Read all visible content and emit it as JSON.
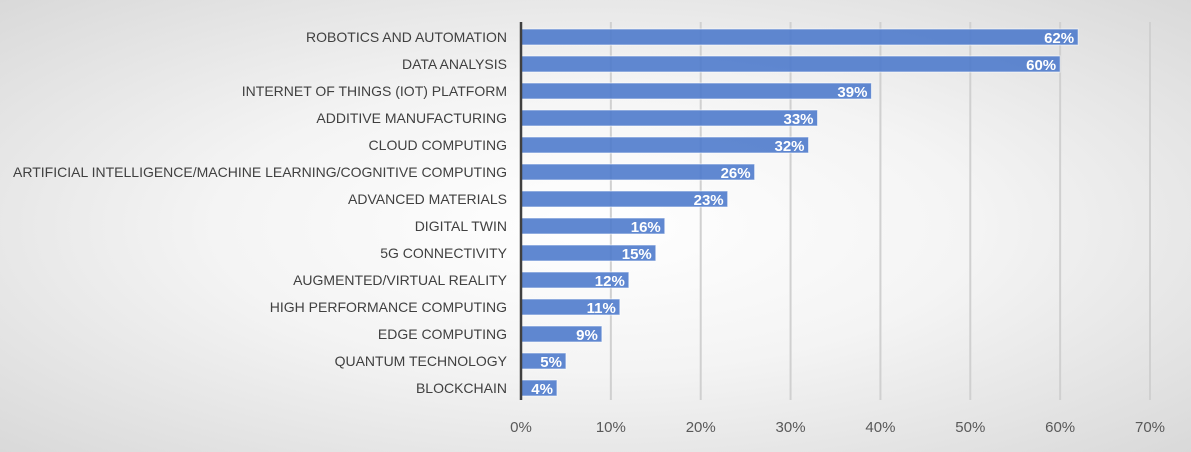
{
  "chart_data": {
    "type": "bar",
    "orientation": "horizontal",
    "categories": [
      "ROBOTICS AND AUTOMATION",
      "DATA ANALYSIS",
      "INTERNET OF THINGS (IOT) PLATFORM",
      "ADDITIVE MANUFACTURING",
      "CLOUD COMPUTING",
      "ARTIFICIAL INTELLIGENCE/MACHINE LEARNING/COGNITIVE COMPUTING",
      "ADVANCED MATERIALS",
      "DIGITAL TWIN",
      "5G CONNECTIVITY",
      "AUGMENTED/VIRTUAL REALITY",
      "HIGH PERFORMANCE COMPUTING",
      "EDGE COMPUTING",
      "QUANTUM TECHNOLOGY",
      "BLOCKCHAIN"
    ],
    "values": [
      62,
      60,
      39,
      33,
      32,
      26,
      23,
      16,
      15,
      12,
      11,
      9,
      5,
      4
    ],
    "data_labels": [
      "62%",
      "60%",
      "39%",
      "33%",
      "32%",
      "26%",
      "23%",
      "16%",
      "15%",
      "12%",
      "11%",
      "9%",
      "5%",
      "4%"
    ],
    "xlim": [
      0,
      70
    ],
    "x_ticks": [
      "0%",
      "10%",
      "20%",
      "30%",
      "40%",
      "50%",
      "60%",
      "70%"
    ],
    "grid": "vertical",
    "bar_color": "#4a78cb",
    "title": "",
    "xlabel": "",
    "ylabel": ""
  }
}
